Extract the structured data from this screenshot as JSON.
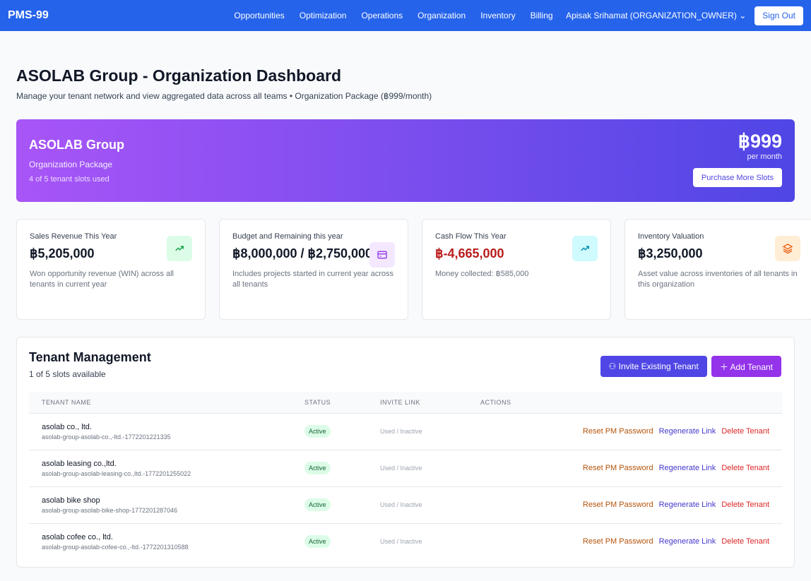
{
  "nav": {
    "brand": "PMS-99",
    "links": [
      "Opportunities",
      "Optimization",
      "Operations",
      "Organization",
      "Inventory",
      "Billing"
    ],
    "user": "Apisak Srihamat (ORGANIZATION_OWNER)",
    "sign_out": "Sign Out"
  },
  "header": {
    "title": "ASOLAB Group - Organization Dashboard",
    "subtitle": "Manage your tenant network and view aggregated data across all teams • Organization Package (฿999/month)"
  },
  "banner": {
    "name": "ASOLAB Group",
    "package": "Organization Package",
    "slots": "4 of 5 tenant slots used",
    "price": "฿999",
    "period": "per month",
    "purchase": "Purchase More Slots"
  },
  "cards": [
    {
      "label": "Sales Revenue This Year",
      "value": "฿5,205,000",
      "desc": "Won opportunity revenue (WIN) across all tenants in current year",
      "icon": "trending-up-icon",
      "color": "#16a34a",
      "bg": "#dcfce7",
      "value_color": "#111827"
    },
    {
      "label": "Budget and Remaining this year",
      "value": "฿8,000,000 / ฿2,750,000",
      "desc": "Includes projects started in current year across all tenants",
      "icon": "credit-card-icon",
      "color": "#9333ea",
      "bg": "#f3e8ff",
      "value_color": "#111827"
    },
    {
      "label": "Cash Flow This Year",
      "value": "฿-4,665,000",
      "desc": "Money collected: ฿585,000",
      "icon": "trending-up-icon",
      "color": "#0891b2",
      "bg": "#cffafe",
      "value_color": "#b91c1c"
    },
    {
      "label": "Inventory Valuation",
      "value": "฿3,250,000",
      "desc": "Asset value across inventories of all tenants in this organization",
      "icon": "layers-icon",
      "color": "#ea580c",
      "bg": "#ffedd5",
      "value_color": "#111827"
    }
  ],
  "tenants": {
    "title": "Tenant Management",
    "slots": "1 of 5 slots available",
    "invite": "Invite Existing Tenant",
    "add": "Add Tenant",
    "columns": [
      "TENANT NAME",
      "STATUS",
      "INVITE LINK",
      "ACTIONS"
    ],
    "rows": [
      {
        "name": "asolab co., ltd.",
        "slug": "asolab-group-asolab-co.,-ltd.-1772201221335",
        "status": "Active",
        "invite": "Used / Inactive"
      },
      {
        "name": "asolab leasing co.,ltd.",
        "slug": "asolab-group-asolab-leasing-co.,ltd.-1772201255022",
        "status": "Active",
        "invite": "Used / Inactive"
      },
      {
        "name": "asolab bike shop",
        "slug": "asolab-group-asolab-bike-shop-1772201287046",
        "status": "Active",
        "invite": "Used / Inactive"
      },
      {
        "name": "asolab cofee co., ltd.",
        "slug": "asolab-group-asolab-cofee-co.,-ltd.-1772201310588",
        "status": "Active",
        "invite": "Used / Inactive"
      }
    ],
    "actions": {
      "reset": "Reset PM Password",
      "regen": "Regenerate Link",
      "delete": "Delete Tenant"
    }
  }
}
